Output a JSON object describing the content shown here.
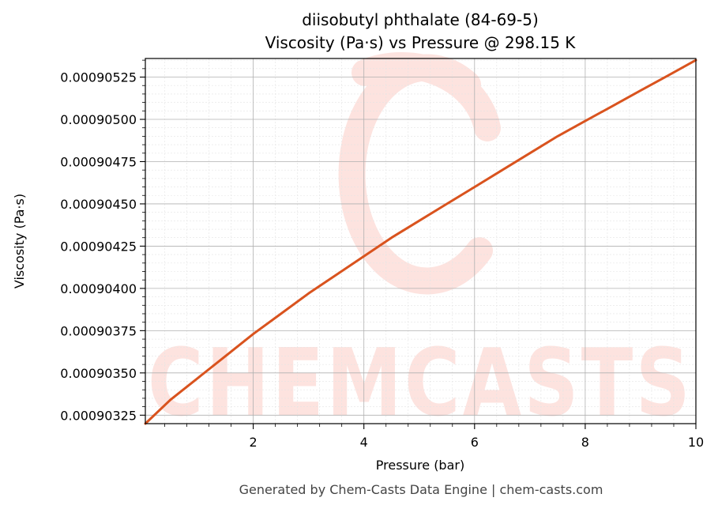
{
  "chart_data": {
    "type": "line",
    "title": "diisobutyl phthalate (84-69-5)",
    "subtitle": "Viscosity (Pa·s) vs Pressure @ 298.15 K",
    "xlabel": "Pressure (bar)",
    "ylabel": "Viscosity (Pa·s)",
    "xlim": [
      0.05,
      10
    ],
    "ylim": [
      0.0009032,
      0.00090536
    ],
    "x_ticks": [
      2,
      4,
      6,
      8,
      10
    ],
    "x_tick_labels": [
      "2",
      "4",
      "6",
      "8",
      "10"
    ],
    "y_ticks": [
      0.00090325,
      0.0009035,
      0.00090375,
      0.000904,
      0.00090425,
      0.0009045,
      0.00090475,
      0.000905,
      0.00090525
    ],
    "y_tick_labels": [
      "0.00090325",
      "0.00090350",
      "0.00090375",
      "0.00090400",
      "0.00090425",
      "0.00090450",
      "0.00090475",
      "0.00090500",
      "0.00090525"
    ],
    "grid": true,
    "series": [
      {
        "color": "#d9531e",
        "x": [
          0.05,
          0.5,
          1.0,
          1.5,
          2.0,
          2.5,
          3.0,
          3.5,
          4.0,
          4.5,
          5.0,
          5.5,
          6.0,
          6.5,
          7.0,
          7.5,
          8.0,
          8.5,
          9.0,
          9.5,
          10.0
        ],
        "y": [
          0.0009032,
          0.00090334,
          0.00090347,
          0.0009036,
          0.00090373,
          0.00090385,
          0.00090397,
          0.00090408,
          0.00090419,
          0.0009043,
          0.0009044,
          0.0009045,
          0.0009046,
          0.0009047,
          0.0009048,
          0.0009049,
          0.00090499,
          0.00090508,
          0.00090517,
          0.00090526,
          0.00090535
        ]
      }
    ]
  },
  "watermark": {
    "text": "CHEMCASTS",
    "color": "#fde3df"
  },
  "footer": "Generated by Chem-Casts Data Engine | chem-casts.com"
}
